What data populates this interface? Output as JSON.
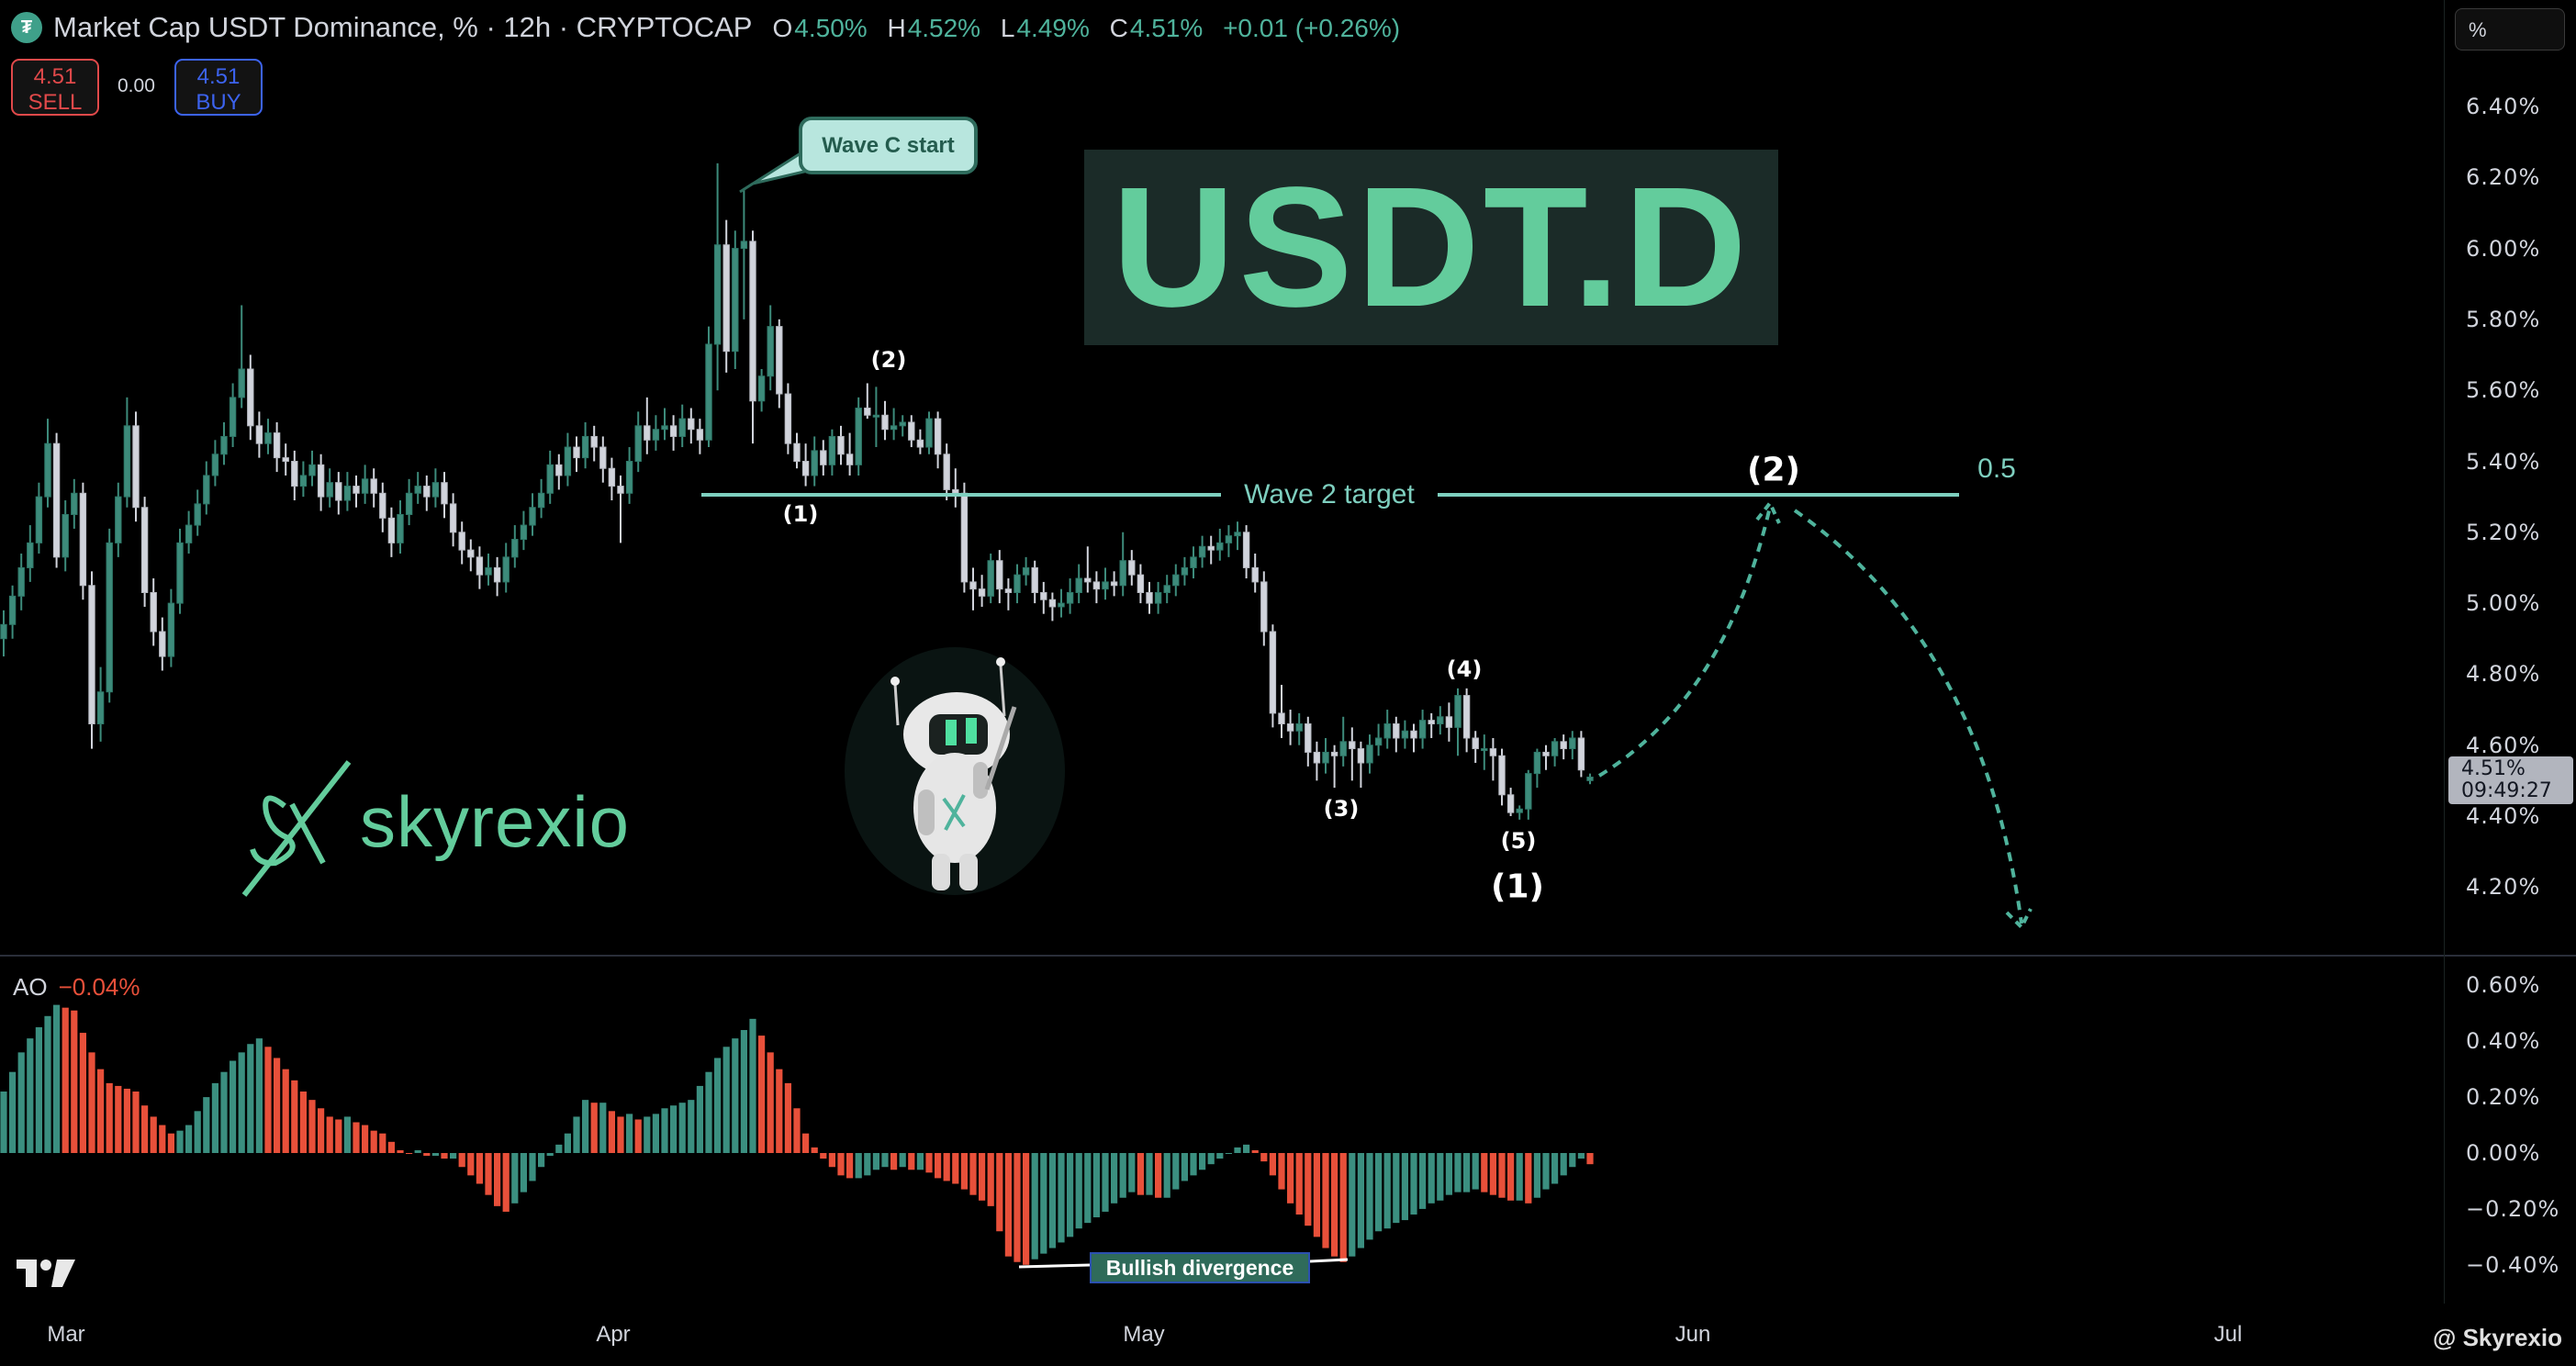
{
  "header": {
    "symbol_icon": "tether-icon",
    "title": "Market Cap USDT Dominance, % · 12h · CRYPTOCAP",
    "ohlc": {
      "o_label": "O",
      "o": "4.50%",
      "h_label": "H",
      "h": "4.52%",
      "l_label": "L",
      "l": "4.49%",
      "c_label": "C",
      "c": "4.51%",
      "change": "+0.01 (+0.26%)"
    }
  },
  "trade": {
    "sell_price": "4.51",
    "sell_label": "SELL",
    "spread": "0.00",
    "buy_price": "4.51",
    "buy_label": "BUY"
  },
  "scale_mode": "%",
  "price_badge": {
    "price": "4.51%",
    "countdown": "09:49:27"
  },
  "annotations": {
    "callout": "Wave C start",
    "big_title": "USDT.D",
    "wave2_target": "Wave 2 target",
    "fib_level": "0.5",
    "target_wave": "(2)",
    "sub_waves": [
      "(1)",
      "(2)",
      "(3)",
      "(4)",
      "(5)"
    ],
    "wave1": "(1)",
    "brand": "skyrexio",
    "bullish_divergence": "Bullish divergence"
  },
  "indicator": {
    "name": "AO",
    "value": "−0.04%"
  },
  "watermark": "@ Skyrexio",
  "colors": {
    "up": "#3d8b7b",
    "down": "#d1d4dc",
    "ao_up": "#3b8f80",
    "ao_down": "#e8503a",
    "accent": "#63cc9c",
    "target_line": "#7ecfbf"
  },
  "chart_data": [
    {
      "type": "candlestick",
      "interval": "12h",
      "ylim": [
        4.05,
        6.5
      ],
      "y_ticks": [
        "6.40%",
        "6.20%",
        "6.00%",
        "5.80%",
        "5.60%",
        "5.40%",
        "5.20%",
        "5.00%",
        "4.80%",
        "4.60%",
        "4.40%",
        "4.20%"
      ],
      "x_ticks": [
        "Mar",
        "Apr",
        "May",
        "Jun",
        "Jul"
      ],
      "wave2_target_level": 5.31,
      "candles": [
        [
          4.9,
          4.98,
          4.85,
          4.94
        ],
        [
          4.94,
          5.05,
          4.9,
          5.02
        ],
        [
          5.02,
          5.14,
          4.98,
          5.1
        ],
        [
          5.1,
          5.22,
          5.06,
          5.17
        ],
        [
          5.17,
          5.34,
          5.14,
          5.3
        ],
        [
          5.3,
          5.52,
          5.27,
          5.45
        ],
        [
          5.45,
          5.48,
          5.1,
          5.13
        ],
        [
          5.13,
          5.29,
          5.09,
          5.25
        ],
        [
          5.25,
          5.35,
          5.21,
          5.31
        ],
        [
          5.31,
          5.34,
          5.01,
          5.05
        ],
        [
          5.05,
          5.09,
          4.59,
          4.66
        ],
        [
          4.66,
          4.82,
          4.61,
          4.75
        ],
        [
          4.75,
          5.21,
          4.72,
          5.17
        ],
        [
          5.17,
          5.34,
          5.13,
          5.3
        ],
        [
          5.3,
          5.58,
          5.27,
          5.5
        ],
        [
          5.5,
          5.54,
          5.23,
          5.27
        ],
        [
          5.27,
          5.3,
          4.99,
          5.03
        ],
        [
          5.03,
          5.07,
          4.88,
          4.92
        ],
        [
          4.92,
          4.96,
          4.81,
          4.85
        ],
        [
          4.85,
          5.04,
          4.82,
          5.0
        ],
        [
          5.0,
          5.21,
          4.97,
          5.17
        ],
        [
          5.17,
          5.26,
          5.14,
          5.22
        ],
        [
          5.22,
          5.32,
          5.19,
          5.28
        ],
        [
          5.28,
          5.4,
          5.25,
          5.36
        ],
        [
          5.36,
          5.46,
          5.33,
          5.42
        ],
        [
          5.42,
          5.51,
          5.39,
          5.47
        ],
        [
          5.47,
          5.62,
          5.44,
          5.58
        ],
        [
          5.58,
          5.84,
          5.55,
          5.66
        ],
        [
          5.66,
          5.7,
          5.46,
          5.5
        ],
        [
          5.5,
          5.54,
          5.41,
          5.45
        ],
        [
          5.45,
          5.52,
          5.42,
          5.48
        ],
        [
          5.48,
          5.51,
          5.37,
          5.41
        ],
        [
          5.41,
          5.45,
          5.36,
          5.4
        ],
        [
          5.4,
          5.43,
          5.29,
          5.33
        ],
        [
          5.33,
          5.4,
          5.3,
          5.36
        ],
        [
          5.36,
          5.43,
          5.33,
          5.39
        ],
        [
          5.39,
          5.42,
          5.26,
          5.3
        ],
        [
          5.3,
          5.38,
          5.27,
          5.34
        ],
        [
          5.34,
          5.37,
          5.25,
          5.29
        ],
        [
          5.29,
          5.37,
          5.26,
          5.33
        ],
        [
          5.33,
          5.36,
          5.27,
          5.31
        ],
        [
          5.31,
          5.39,
          5.28,
          5.35
        ],
        [
          5.35,
          5.38,
          5.27,
          5.31
        ],
        [
          5.31,
          5.34,
          5.2,
          5.24
        ],
        [
          5.24,
          5.27,
          5.13,
          5.17
        ],
        [
          5.17,
          5.29,
          5.14,
          5.25
        ],
        [
          5.25,
          5.35,
          5.22,
          5.31
        ],
        [
          5.31,
          5.37,
          5.28,
          5.33
        ],
        [
          5.33,
          5.36,
          5.26,
          5.3
        ],
        [
          5.3,
          5.38,
          5.27,
          5.34
        ],
        [
          5.34,
          5.37,
          5.24,
          5.28
        ],
        [
          5.28,
          5.31,
          5.16,
          5.2
        ],
        [
          5.2,
          5.23,
          5.11,
          5.15
        ],
        [
          5.15,
          5.18,
          5.09,
          5.13
        ],
        [
          5.13,
          5.16,
          5.04,
          5.08
        ],
        [
          5.08,
          5.14,
          5.05,
          5.1
        ],
        [
          5.1,
          5.13,
          5.02,
          5.06
        ],
        [
          5.06,
          5.17,
          5.03,
          5.13
        ],
        [
          5.13,
          5.22,
          5.1,
          5.18
        ],
        [
          5.18,
          5.26,
          5.15,
          5.22
        ],
        [
          5.22,
          5.31,
          5.19,
          5.27
        ],
        [
          5.27,
          5.35,
          5.24,
          5.31
        ],
        [
          5.31,
          5.43,
          5.28,
          5.39
        ],
        [
          5.39,
          5.42,
          5.32,
          5.36
        ],
        [
          5.36,
          5.48,
          5.33,
          5.44
        ],
        [
          5.44,
          5.47,
          5.37,
          5.41
        ],
        [
          5.41,
          5.51,
          5.38,
          5.47
        ],
        [
          5.47,
          5.5,
          5.4,
          5.44
        ],
        [
          5.44,
          5.47,
          5.34,
          5.38
        ],
        [
          5.38,
          5.41,
          5.29,
          5.33
        ],
        [
          5.33,
          5.36,
          5.17,
          5.31
        ],
        [
          5.31,
          5.44,
          5.28,
          5.4
        ],
        [
          5.4,
          5.54,
          5.37,
          5.5
        ],
        [
          5.5,
          5.58,
          5.42,
          5.46
        ],
        [
          5.46,
          5.53,
          5.43,
          5.49
        ],
        [
          5.49,
          5.55,
          5.46,
          5.5
        ],
        [
          5.5,
          5.53,
          5.43,
          5.47
        ],
        [
          5.47,
          5.56,
          5.44,
          5.52
        ],
        [
          5.52,
          5.55,
          5.45,
          5.49
        ],
        [
          5.49,
          5.52,
          5.42,
          5.46
        ],
        [
          5.46,
          5.78,
          5.44,
          5.73
        ],
        [
          5.73,
          6.24,
          5.6,
          6.01
        ],
        [
          6.01,
          6.08,
          5.65,
          5.71
        ],
        [
          5.71,
          6.05,
          5.66,
          6.0
        ],
        [
          6.0,
          6.17,
          5.8,
          6.02
        ],
        [
          6.02,
          6.05,
          5.45,
          5.57
        ],
        [
          5.57,
          5.66,
          5.54,
          5.64
        ],
        [
          5.64,
          5.84,
          5.6,
          5.78
        ],
        [
          5.78,
          5.8,
          5.55,
          5.59
        ],
        [
          5.59,
          5.62,
          5.42,
          5.45
        ],
        [
          5.45,
          5.48,
          5.38,
          5.4
        ],
        [
          5.4,
          5.45,
          5.33,
          5.36
        ],
        [
          5.36,
          5.47,
          5.33,
          5.43
        ],
        [
          5.43,
          5.46,
          5.36,
          5.39
        ],
        [
          5.39,
          5.49,
          5.36,
          5.47
        ],
        [
          5.47,
          5.5,
          5.39,
          5.42
        ],
        [
          5.42,
          5.48,
          5.36,
          5.39
        ],
        [
          5.39,
          5.58,
          5.36,
          5.55
        ],
        [
          5.55,
          5.62,
          5.52,
          5.53
        ],
        [
          5.53,
          5.61,
          5.44,
          5.53
        ],
        [
          5.53,
          5.57,
          5.46,
          5.49
        ],
        [
          5.49,
          5.55,
          5.46,
          5.5
        ],
        [
          5.5,
          5.53,
          5.47,
          5.51
        ],
        [
          5.51,
          5.53,
          5.44,
          5.46
        ],
        [
          5.46,
          5.49,
          5.42,
          5.44
        ],
        [
          5.44,
          5.54,
          5.42,
          5.52
        ],
        [
          5.52,
          5.54,
          5.38,
          5.42
        ],
        [
          5.42,
          5.45,
          5.29,
          5.32
        ],
        [
          5.32,
          5.38,
          5.27,
          5.31
        ],
        [
          5.31,
          5.34,
          5.03,
          5.06
        ],
        [
          5.06,
          5.1,
          4.98,
          5.04
        ],
        [
          5.04,
          5.08,
          4.99,
          5.02
        ],
        [
          5.02,
          5.14,
          5.0,
          5.12
        ],
        [
          5.12,
          5.15,
          5.0,
          5.04
        ],
        [
          5.04,
          5.07,
          4.98,
          5.03
        ],
        [
          5.03,
          5.11,
          5.0,
          5.08
        ],
        [
          5.08,
          5.13,
          5.05,
          5.1
        ],
        [
          5.1,
          5.12,
          5.0,
          5.03
        ],
        [
          5.03,
          5.06,
          4.97,
          5.01
        ],
        [
          5.01,
          5.03,
          4.95,
          4.99
        ],
        [
          4.99,
          5.04,
          4.96,
          5.0
        ],
        [
          5.0,
          5.07,
          4.97,
          5.03
        ],
        [
          5.03,
          5.11,
          5.0,
          5.07
        ],
        [
          5.07,
          5.16,
          5.03,
          5.06
        ],
        [
          5.06,
          5.09,
          5.0,
          5.04
        ],
        [
          5.04,
          5.1,
          5.01,
          5.06
        ],
        [
          5.06,
          5.09,
          5.02,
          5.05
        ],
        [
          5.05,
          5.2,
          5.02,
          5.12
        ],
        [
          5.12,
          5.15,
          5.05,
          5.08
        ],
        [
          5.08,
          5.11,
          5.0,
          5.03
        ],
        [
          5.03,
          5.06,
          4.97,
          5.0
        ],
        [
          5.0,
          5.06,
          4.97,
          5.03
        ],
        [
          5.03,
          5.08,
          5.0,
          5.05
        ],
        [
          5.05,
          5.11,
          5.02,
          5.08
        ],
        [
          5.08,
          5.13,
          5.05,
          5.1
        ],
        [
          5.1,
          5.16,
          5.07,
          5.13
        ],
        [
          5.13,
          5.19,
          5.1,
          5.16
        ],
        [
          5.16,
          5.19,
          5.11,
          5.15
        ],
        [
          5.15,
          5.21,
          5.12,
          5.17
        ],
        [
          5.17,
          5.22,
          5.13,
          5.19
        ],
        [
          5.19,
          5.23,
          5.15,
          5.2
        ],
        [
          5.2,
          5.22,
          5.07,
          5.1
        ],
        [
          5.1,
          5.14,
          5.03,
          5.06
        ],
        [
          5.06,
          5.09,
          4.88,
          4.92
        ],
        [
          4.92,
          4.94,
          4.65,
          4.69
        ],
        [
          4.69,
          4.77,
          4.62,
          4.66
        ],
        [
          4.66,
          4.7,
          4.6,
          4.64
        ],
        [
          4.64,
          4.69,
          4.6,
          4.66
        ],
        [
          4.66,
          4.68,
          4.54,
          4.58
        ],
        [
          4.58,
          4.61,
          4.5,
          4.55
        ],
        [
          4.55,
          4.62,
          4.52,
          4.58
        ],
        [
          4.58,
          4.6,
          4.48,
          4.57
        ],
        [
          4.57,
          4.68,
          4.54,
          4.61
        ],
        [
          4.61,
          4.65,
          4.5,
          4.59
        ],
        [
          4.59,
          4.61,
          4.48,
          4.55
        ],
        [
          4.55,
          4.63,
          4.52,
          4.6
        ],
        [
          4.6,
          4.66,
          4.57,
          4.62
        ],
        [
          4.62,
          4.7,
          4.59,
          4.66
        ],
        [
          4.66,
          4.68,
          4.58,
          4.62
        ],
        [
          4.62,
          4.67,
          4.59,
          4.64
        ],
        [
          4.64,
          4.66,
          4.58,
          4.62
        ],
        [
          4.62,
          4.7,
          4.59,
          4.67
        ],
        [
          4.67,
          4.69,
          4.62,
          4.66
        ],
        [
          4.66,
          4.71,
          4.63,
          4.68
        ],
        [
          4.68,
          4.72,
          4.61,
          4.65
        ],
        [
          4.65,
          4.76,
          4.57,
          4.74
        ],
        [
          4.74,
          4.76,
          4.58,
          4.62
        ],
        [
          4.62,
          4.64,
          4.55,
          4.59
        ],
        [
          4.59,
          4.63,
          4.53,
          4.59
        ],
        [
          4.59,
          4.62,
          4.5,
          4.57
        ],
        [
          4.57,
          4.59,
          4.43,
          4.46
        ],
        [
          4.46,
          4.48,
          4.4,
          4.41
        ],
        [
          4.41,
          4.43,
          4.39,
          4.42
        ],
        [
          4.42,
          4.53,
          4.39,
          4.52
        ],
        [
          4.52,
          4.59,
          4.48,
          4.58
        ],
        [
          4.58,
          4.6,
          4.53,
          4.57
        ],
        [
          4.57,
          4.62,
          4.54,
          4.61
        ],
        [
          4.61,
          4.63,
          4.56,
          4.59
        ],
        [
          4.59,
          4.64,
          4.56,
          4.62
        ],
        [
          4.62,
          4.64,
          4.51,
          4.53
        ],
        [
          4.5,
          4.52,
          4.49,
          4.51
        ]
      ]
    },
    {
      "type": "bar",
      "name": "AO",
      "ylim": [
        -0.5,
        0.65
      ],
      "y_ticks": [
        "0.60%",
        "0.40%",
        "0.20%",
        "0.00%",
        "−0.20%",
        "−0.40%"
      ],
      "values": [
        0.22,
        0.29,
        0.36,
        0.41,
        0.45,
        0.49,
        0.53,
        0.52,
        0.51,
        0.43,
        0.36,
        0.3,
        0.25,
        0.24,
        0.23,
        0.22,
        0.17,
        0.13,
        0.1,
        0.07,
        0.08,
        0.1,
        0.15,
        0.2,
        0.25,
        0.29,
        0.33,
        0.36,
        0.39,
        0.41,
        0.38,
        0.34,
        0.3,
        0.26,
        0.22,
        0.19,
        0.16,
        0.13,
        0.12,
        0.13,
        0.11,
        0.1,
        0.08,
        0.07,
        0.04,
        0.01,
        0.0,
        0.01,
        -0.01,
        -0.01,
        -0.02,
        -0.02,
        -0.05,
        -0.08,
        -0.11,
        -0.15,
        -0.19,
        -0.21,
        -0.18,
        -0.14,
        -0.1,
        -0.05,
        -0.01,
        0.03,
        0.07,
        0.13,
        0.19,
        0.18,
        0.18,
        0.15,
        0.13,
        0.14,
        0.12,
        0.13,
        0.14,
        0.16,
        0.17,
        0.18,
        0.19,
        0.24,
        0.29,
        0.34,
        0.38,
        0.41,
        0.44,
        0.48,
        0.42,
        0.36,
        0.3,
        0.25,
        0.16,
        0.07,
        0.02,
        -0.02,
        -0.05,
        -0.08,
        -0.09,
        -0.09,
        -0.08,
        -0.06,
        -0.05,
        -0.06,
        -0.05,
        -0.06,
        -0.06,
        -0.07,
        -0.09,
        -0.1,
        -0.11,
        -0.13,
        -0.15,
        -0.17,
        -0.19,
        -0.28,
        -0.37,
        -0.39,
        -0.4,
        -0.38,
        -0.36,
        -0.34,
        -0.32,
        -0.3,
        -0.27,
        -0.25,
        -0.23,
        -0.21,
        -0.18,
        -0.16,
        -0.14,
        -0.15,
        -0.15,
        -0.16,
        -0.16,
        -0.13,
        -0.1,
        -0.08,
        -0.06,
        -0.04,
        -0.02,
        0.0,
        0.02,
        0.03,
        0.01,
        -0.03,
        -0.08,
        -0.13,
        -0.18,
        -0.22,
        -0.26,
        -0.3,
        -0.34,
        -0.37,
        -0.39,
        -0.37,
        -0.34,
        -0.31,
        -0.28,
        -0.27,
        -0.25,
        -0.24,
        -0.22,
        -0.2,
        -0.18,
        -0.17,
        -0.15,
        -0.14,
        -0.14,
        -0.13,
        -0.14,
        -0.15,
        -0.16,
        -0.17,
        -0.17,
        -0.18,
        -0.16,
        -0.13,
        -0.11,
        -0.08,
        -0.05,
        -0.02,
        -0.04
      ]
    }
  ]
}
